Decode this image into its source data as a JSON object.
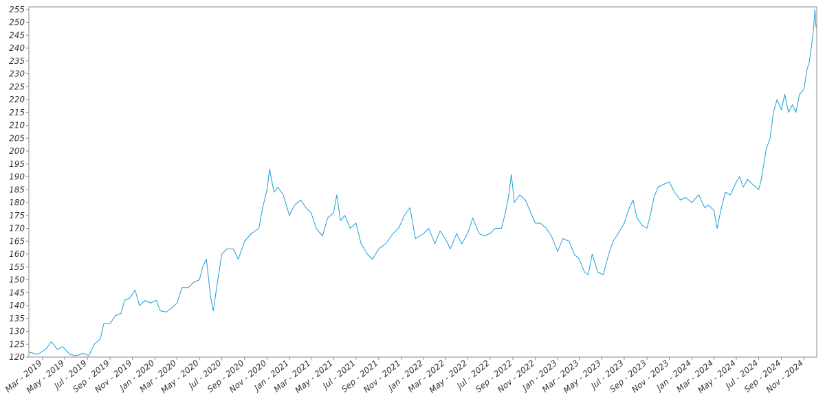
{
  "chart_data": {
    "type": "line",
    "title": "",
    "xlabel": "",
    "ylabel": "",
    "x_range": [
      "2019-01-23",
      "2024-12-06"
    ],
    "ylim": [
      120,
      256
    ],
    "y_ticks": [
      120,
      125,
      130,
      135,
      140,
      145,
      150,
      155,
      160,
      165,
      170,
      175,
      180,
      185,
      190,
      195,
      200,
      205,
      210,
      215,
      220,
      225,
      230,
      235,
      240,
      245,
      250,
      255
    ],
    "x_tick_dates": [
      "2019-03-01",
      "2019-05-01",
      "2019-07-01",
      "2019-09-01",
      "2019-11-01",
      "2020-01-01",
      "2020-03-01",
      "2020-05-01",
      "2020-07-01",
      "2020-09-01",
      "2020-11-01",
      "2021-01-01",
      "2021-03-01",
      "2021-05-01",
      "2021-07-01",
      "2021-09-01",
      "2021-11-01",
      "2022-01-01",
      "2022-03-01",
      "2022-05-01",
      "2022-07-01",
      "2022-09-01",
      "2022-11-01",
      "2023-01-01",
      "2023-03-01",
      "2023-05-01",
      "2023-07-01",
      "2023-09-01",
      "2023-11-01",
      "2024-01-01",
      "2024-03-01",
      "2024-05-01",
      "2024-07-01",
      "2024-09-01",
      "2024-11-01"
    ],
    "x_tick_labels": [
      "Mar - 2019",
      "May - 2019",
      "Jul - 2019",
      "Sep - 2019",
      "Nov - 2019",
      "Jan - 2020",
      "Mar - 2020",
      "May - 2020",
      "Jul - 2020",
      "Sep - 2020",
      "Nov - 2020",
      "Jan - 2021",
      "Mar - 2021",
      "May - 2021",
      "Jul - 2021",
      "Sep - 2021",
      "Nov - 2021",
      "Jan - 2022",
      "Mar - 2022",
      "May - 2022",
      "Jul - 2022",
      "Sep - 2022",
      "Nov - 2022",
      "Jan - 2023",
      "Mar - 2023",
      "May - 2023",
      "Jul - 2023",
      "Sep - 2023",
      "Nov - 2023",
      "Jan - 2024",
      "Mar - 2024",
      "May - 2024",
      "Jul - 2024",
      "Sep - 2024",
      "Nov - 2024"
    ],
    "grid": false,
    "legend": "none",
    "series": [
      {
        "color": "#1a9fd8",
        "points": [
          [
            "2019-01-23",
            122
          ],
          [
            "2019-02-15",
            121
          ],
          [
            "2019-03-10",
            123
          ],
          [
            "2019-03-25",
            126
          ],
          [
            "2019-04-10",
            123
          ],
          [
            "2019-04-25",
            124
          ],
          [
            "2019-05-15",
            121
          ],
          [
            "2019-06-01",
            120.5
          ],
          [
            "2019-06-20",
            121.5
          ],
          [
            "2019-07-05",
            120.5
          ],
          [
            "2019-07-20",
            125
          ],
          [
            "2019-08-05",
            127
          ],
          [
            "2019-08-15",
            133
          ],
          [
            "2019-09-01",
            133
          ],
          [
            "2019-09-15",
            136
          ],
          [
            "2019-10-01",
            137
          ],
          [
            "2019-10-10",
            142
          ],
          [
            "2019-10-25",
            143
          ],
          [
            "2019-11-08",
            146
          ],
          [
            "2019-11-20",
            140
          ],
          [
            "2019-12-05",
            142
          ],
          [
            "2019-12-20",
            141
          ],
          [
            "2020-01-05",
            142
          ],
          [
            "2020-01-15",
            138
          ],
          [
            "2020-02-01",
            137.5
          ],
          [
            "2020-02-15",
            139
          ],
          [
            "2020-03-01",
            141
          ],
          [
            "2020-03-15",
            147
          ],
          [
            "2020-04-01",
            147
          ],
          [
            "2020-04-15",
            149
          ],
          [
            "2020-05-01",
            150
          ],
          [
            "2020-05-10",
            155
          ],
          [
            "2020-05-20",
            158
          ],
          [
            "2020-06-01",
            143
          ],
          [
            "2020-06-08",
            138
          ],
          [
            "2020-06-18",
            148
          ],
          [
            "2020-07-01",
            160
          ],
          [
            "2020-07-15",
            162
          ],
          [
            "2020-08-01",
            162
          ],
          [
            "2020-08-15",
            158
          ],
          [
            "2020-09-01",
            165
          ],
          [
            "2020-09-20",
            168
          ],
          [
            "2020-10-10",
            170
          ],
          [
            "2020-10-20",
            178
          ],
          [
            "2020-11-01",
            185
          ],
          [
            "2020-11-08",
            193
          ],
          [
            "2020-11-20",
            184
          ],
          [
            "2020-12-01",
            186
          ],
          [
            "2020-12-15",
            183
          ],
          [
            "2021-01-01",
            175
          ],
          [
            "2021-01-15",
            179
          ],
          [
            "2021-02-01",
            181
          ],
          [
            "2021-02-15",
            178
          ],
          [
            "2021-03-01",
            176
          ],
          [
            "2021-03-15",
            170
          ],
          [
            "2021-04-01",
            167
          ],
          [
            "2021-04-15",
            174
          ],
          [
            "2021-05-01",
            176
          ],
          [
            "2021-05-10",
            183
          ],
          [
            "2021-05-20",
            173
          ],
          [
            "2021-06-01",
            175
          ],
          [
            "2021-06-15",
            170
          ],
          [
            "2021-07-01",
            172
          ],
          [
            "2021-07-15",
            164
          ],
          [
            "2021-08-01",
            160
          ],
          [
            "2021-08-15",
            158
          ],
          [
            "2021-09-01",
            162
          ],
          [
            "2021-09-20",
            164
          ],
          [
            "2021-10-10",
            168
          ],
          [
            "2021-10-25",
            170
          ],
          [
            "2021-11-10",
            175
          ],
          [
            "2021-11-25",
            178
          ],
          [
            "2021-12-10",
            166
          ],
          [
            "2022-01-01",
            168
          ],
          [
            "2022-01-15",
            170
          ],
          [
            "2022-02-01",
            164
          ],
          [
            "2022-02-15",
            169
          ],
          [
            "2022-03-01",
            166
          ],
          [
            "2022-03-15",
            162
          ],
          [
            "2022-04-01",
            168
          ],
          [
            "2022-04-15",
            164
          ],
          [
            "2022-05-01",
            168
          ],
          [
            "2022-05-15",
            174
          ],
          [
            "2022-06-01",
            168
          ],
          [
            "2022-06-15",
            167
          ],
          [
            "2022-07-01",
            168
          ],
          [
            "2022-07-15",
            170
          ],
          [
            "2022-08-01",
            170
          ],
          [
            "2022-08-10",
            175
          ],
          [
            "2022-08-20",
            182
          ],
          [
            "2022-08-28",
            191
          ],
          [
            "2022-09-05",
            180
          ],
          [
            "2022-09-20",
            183
          ],
          [
            "2022-10-05",
            181
          ],
          [
            "2022-10-20",
            176
          ],
          [
            "2022-11-01",
            172
          ],
          [
            "2022-11-15",
            172
          ],
          [
            "2022-12-01",
            170
          ],
          [
            "2022-12-15",
            167
          ],
          [
            "2023-01-01",
            161
          ],
          [
            "2023-01-15",
            166
          ],
          [
            "2023-02-01",
            165
          ],
          [
            "2023-02-15",
            160
          ],
          [
            "2023-03-01",
            158
          ],
          [
            "2023-03-15",
            153
          ],
          [
            "2023-03-25",
            152
          ],
          [
            "2023-04-05",
            160
          ],
          [
            "2023-04-20",
            153
          ],
          [
            "2023-05-05",
            152
          ],
          [
            "2023-05-20",
            160
          ],
          [
            "2023-06-01",
            165
          ],
          [
            "2023-06-15",
            168
          ],
          [
            "2023-07-01",
            172
          ],
          [
            "2023-07-15",
            178
          ],
          [
            "2023-07-25",
            181
          ],
          [
            "2023-08-05",
            174
          ],
          [
            "2023-08-20",
            171
          ],
          [
            "2023-09-01",
            170
          ],
          [
            "2023-09-10",
            175
          ],
          [
            "2023-09-20",
            182
          ],
          [
            "2023-10-01",
            186
          ],
          [
            "2023-10-15",
            187
          ],
          [
            "2023-11-01",
            188
          ],
          [
            "2023-11-15",
            184
          ],
          [
            "2023-12-01",
            181
          ],
          [
            "2023-12-15",
            182
          ],
          [
            "2024-01-01",
            180
          ],
          [
            "2024-01-20",
            183
          ],
          [
            "2024-02-05",
            178
          ],
          [
            "2024-02-15",
            179
          ],
          [
            "2024-03-01",
            177
          ],
          [
            "2024-03-10",
            170
          ],
          [
            "2024-03-20",
            177
          ],
          [
            "2024-04-01",
            184
          ],
          [
            "2024-04-15",
            183
          ],
          [
            "2024-05-01",
            188
          ],
          [
            "2024-05-10",
            190
          ],
          [
            "2024-05-20",
            186
          ],
          [
            "2024-06-01",
            189
          ],
          [
            "2024-06-15",
            187
          ],
          [
            "2024-07-01",
            185
          ],
          [
            "2024-07-08",
            189
          ],
          [
            "2024-07-15",
            195
          ],
          [
            "2024-07-22",
            201
          ],
          [
            "2024-08-01",
            205
          ],
          [
            "2024-08-10",
            215
          ],
          [
            "2024-08-20",
            220
          ],
          [
            "2024-09-01",
            216
          ],
          [
            "2024-09-10",
            222
          ],
          [
            "2024-09-20",
            215
          ],
          [
            "2024-10-01",
            218
          ],
          [
            "2024-10-10",
            215
          ],
          [
            "2024-10-20",
            222
          ],
          [
            "2024-11-01",
            224
          ],
          [
            "2024-11-10",
            232
          ],
          [
            "2024-11-15",
            234
          ],
          [
            "2024-11-22",
            241
          ],
          [
            "2024-11-27",
            247
          ],
          [
            "2024-12-01",
            255
          ],
          [
            "2024-12-04",
            248
          ]
        ]
      }
    ]
  }
}
